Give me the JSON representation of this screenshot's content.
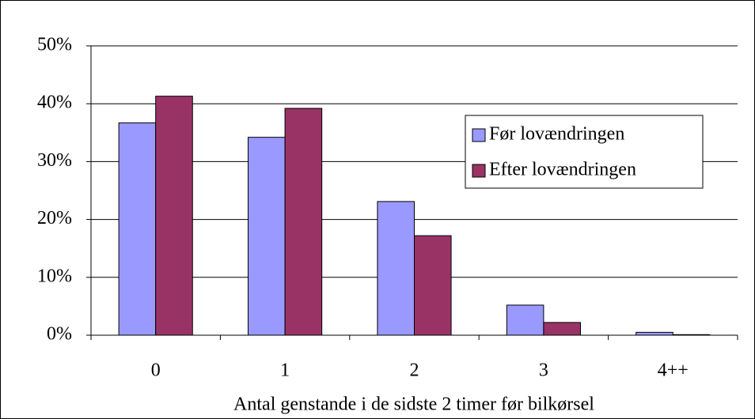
{
  "chart_data": {
    "type": "bar",
    "x_label": "Antal genstande i de sidste 2 timer før bilkørsel",
    "categories": [
      "0",
      "1",
      "2",
      "3",
      "4++"
    ],
    "series": [
      {
        "name": "Før lovændringen",
        "color": "#9999ff",
        "values": [
          36.7,
          34.2,
          23.1,
          5.2,
          0.5
        ]
      },
      {
        "name": "Efter lovændringen",
        "color": "#993366",
        "values": [
          41.3,
          39.2,
          17.2,
          2.2,
          0.1
        ]
      }
    ],
    "ylim": [
      0,
      50
    ],
    "yticks": [
      {
        "value": 0,
        "label": "0%"
      },
      {
        "value": 10,
        "label": "10%"
      },
      {
        "value": 20,
        "label": "20%"
      },
      {
        "value": 30,
        "label": "30%"
      },
      {
        "value": 40,
        "label": "40%"
      },
      {
        "value": 50,
        "label": "50%"
      }
    ],
    "grid": true,
    "legend": "right"
  }
}
